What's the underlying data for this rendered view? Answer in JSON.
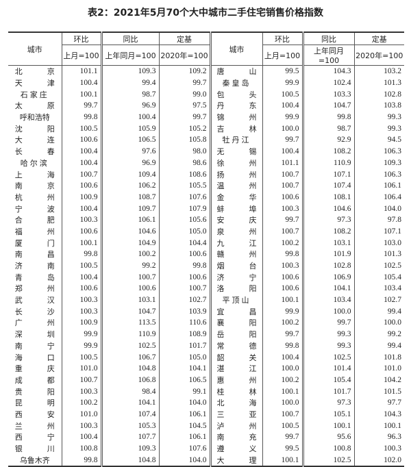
{
  "title": "表2：2021年5月70个大中城市二手住宅销售价格指数",
  "headers": {
    "city": "城市",
    "mom": "环比",
    "yoy": "同比",
    "base": "定基",
    "mom_sub": "上月=100",
    "yoy_sub": "上年同月=100",
    "base_sub": "2020年=100"
  },
  "left": [
    [
      "北京",
      "101.1",
      "109.3",
      "109.2"
    ],
    [
      "天津",
      "100.4",
      "99.4",
      "99.7"
    ],
    [
      "石家庄",
      "100.1",
      "98.7",
      "99.0"
    ],
    [
      "太原",
      "99.7",
      "96.9",
      "97.5"
    ],
    [
      "呼和浩特",
      "99.8",
      "100.4",
      "99.7"
    ],
    [
      "沈阳",
      "100.5",
      "105.9",
      "105.2"
    ],
    [
      "大连",
      "100.6",
      "106.5",
      "105.8"
    ],
    [
      "长春",
      "100.4",
      "97.6",
      "98.0"
    ],
    [
      "哈尔滨",
      "100.4",
      "96.9",
      "98.6"
    ],
    [
      "上海",
      "100.7",
      "109.4",
      "108.6"
    ],
    [
      "南京",
      "100.6",
      "106.2",
      "105.5"
    ],
    [
      "杭州",
      "100.9",
      "108.7",
      "107.6"
    ],
    [
      "宁波",
      "100.4",
      "109.7",
      "107.9"
    ],
    [
      "合肥",
      "100.3",
      "106.1",
      "105.6"
    ],
    [
      "福州",
      "100.6",
      "104.6",
      "105.0"
    ],
    [
      "厦门",
      "100.1",
      "104.9",
      "104.4"
    ],
    [
      "南昌",
      "99.8",
      "100.2",
      "100.6"
    ],
    [
      "济南",
      "100.5",
      "99.2",
      "99.8"
    ],
    [
      "青岛",
      "100.4",
      "100.7",
      "100.6"
    ],
    [
      "郑州",
      "100.6",
      "100.6",
      "100.7"
    ],
    [
      "武汉",
      "100.3",
      "103.1",
      "102.7"
    ],
    [
      "长沙",
      "100.3",
      "104.7",
      "103.9"
    ],
    [
      "广州",
      "100.9",
      "113.5",
      "110.6"
    ],
    [
      "深圳",
      "99.9",
      "110.9",
      "108.9"
    ],
    [
      "南宁",
      "99.9",
      "102.5",
      "101.7"
    ],
    [
      "海口",
      "100.5",
      "106.7",
      "105.0"
    ],
    [
      "重庆",
      "101.0",
      "104.8",
      "104.1"
    ],
    [
      "成都",
      "100.7",
      "106.8",
      "106.5"
    ],
    [
      "贵阳",
      "100.3",
      "98.4",
      "99.1"
    ],
    [
      "昆明",
      "100.2",
      "104.1",
      "104.0"
    ],
    [
      "西安",
      "101.0",
      "107.4",
      "106.1"
    ],
    [
      "兰州",
      "100.3",
      "105.3",
      "104.5"
    ],
    [
      "西宁",
      "100.4",
      "107.7",
      "106.1"
    ],
    [
      "银川",
      "100.8",
      "109.3",
      "107.6"
    ],
    [
      "乌鲁木齐",
      "99.8",
      "104.8",
      "104.0"
    ]
  ],
  "right": [
    [
      "唐山",
      "99.5",
      "104.3",
      "103.2"
    ],
    [
      "秦皇岛",
      "99.9",
      "102.4",
      "101.3"
    ],
    [
      "包头",
      "100.5",
      "103.3",
      "102.8"
    ],
    [
      "丹东",
      "100.4",
      "104.7",
      "103.8"
    ],
    [
      "锦州",
      "99.9",
      "99.8",
      "99.3"
    ],
    [
      "吉林",
      "100.0",
      "98.7",
      "99.3"
    ],
    [
      "牡丹江",
      "99.7",
      "92.9",
      "94.5"
    ],
    [
      "无锡",
      "100.4",
      "108.2",
      "106.3"
    ],
    [
      "徐州",
      "101.1",
      "110.9",
      "109.3"
    ],
    [
      "扬州",
      "100.7",
      "107.1",
      "106.3"
    ],
    [
      "温州",
      "100.7",
      "107.4",
      "106.1"
    ],
    [
      "金华",
      "100.6",
      "108.1",
      "106.4"
    ],
    [
      "蚌埠",
      "100.3",
      "104.6",
      "104.0"
    ],
    [
      "安庆",
      "99.7",
      "97.3",
      "97.8"
    ],
    [
      "泉州",
      "100.7",
      "108.2",
      "107.1"
    ],
    [
      "九江",
      "100.2",
      "103.1",
      "103.0"
    ],
    [
      "赣州",
      "99.8",
      "101.9",
      "101.3"
    ],
    [
      "烟台",
      "100.3",
      "102.8",
      "102.5"
    ],
    [
      "济宁",
      "100.6",
      "106.9",
      "105.4"
    ],
    [
      "洛阳",
      "100.6",
      "104.1",
      "103.4"
    ],
    [
      "平顶山",
      "100.1",
      "103.4",
      "102.7"
    ],
    [
      "宜昌",
      "99.9",
      "100.0",
      "99.4"
    ],
    [
      "襄阳",
      "100.2",
      "99.7",
      "100.0"
    ],
    [
      "岳阳",
      "99.7",
      "99.3",
      "99.2"
    ],
    [
      "常德",
      "99.8",
      "99.3",
      "99.4"
    ],
    [
      "韶关",
      "100.4",
      "102.5",
      "101.8"
    ],
    [
      "湛江",
      "100.0",
      "101.4",
      "101.0"
    ],
    [
      "惠州",
      "100.2",
      "105.4",
      "104.2"
    ],
    [
      "桂林",
      "100.1",
      "101.7",
      "101.5"
    ],
    [
      "北海",
      "100.0",
      "97.3",
      "97.7"
    ],
    [
      "三亚",
      "100.7",
      "105.1",
      "104.3"
    ],
    [
      "泸州",
      "100.5",
      "100.1",
      "100.1"
    ],
    [
      "南充",
      "99.7",
      "95.6",
      "96.3"
    ],
    [
      "遵义",
      "99.5",
      "100.8",
      "100.3"
    ],
    [
      "大理",
      "100.1",
      "102.5",
      "102.0"
    ]
  ]
}
